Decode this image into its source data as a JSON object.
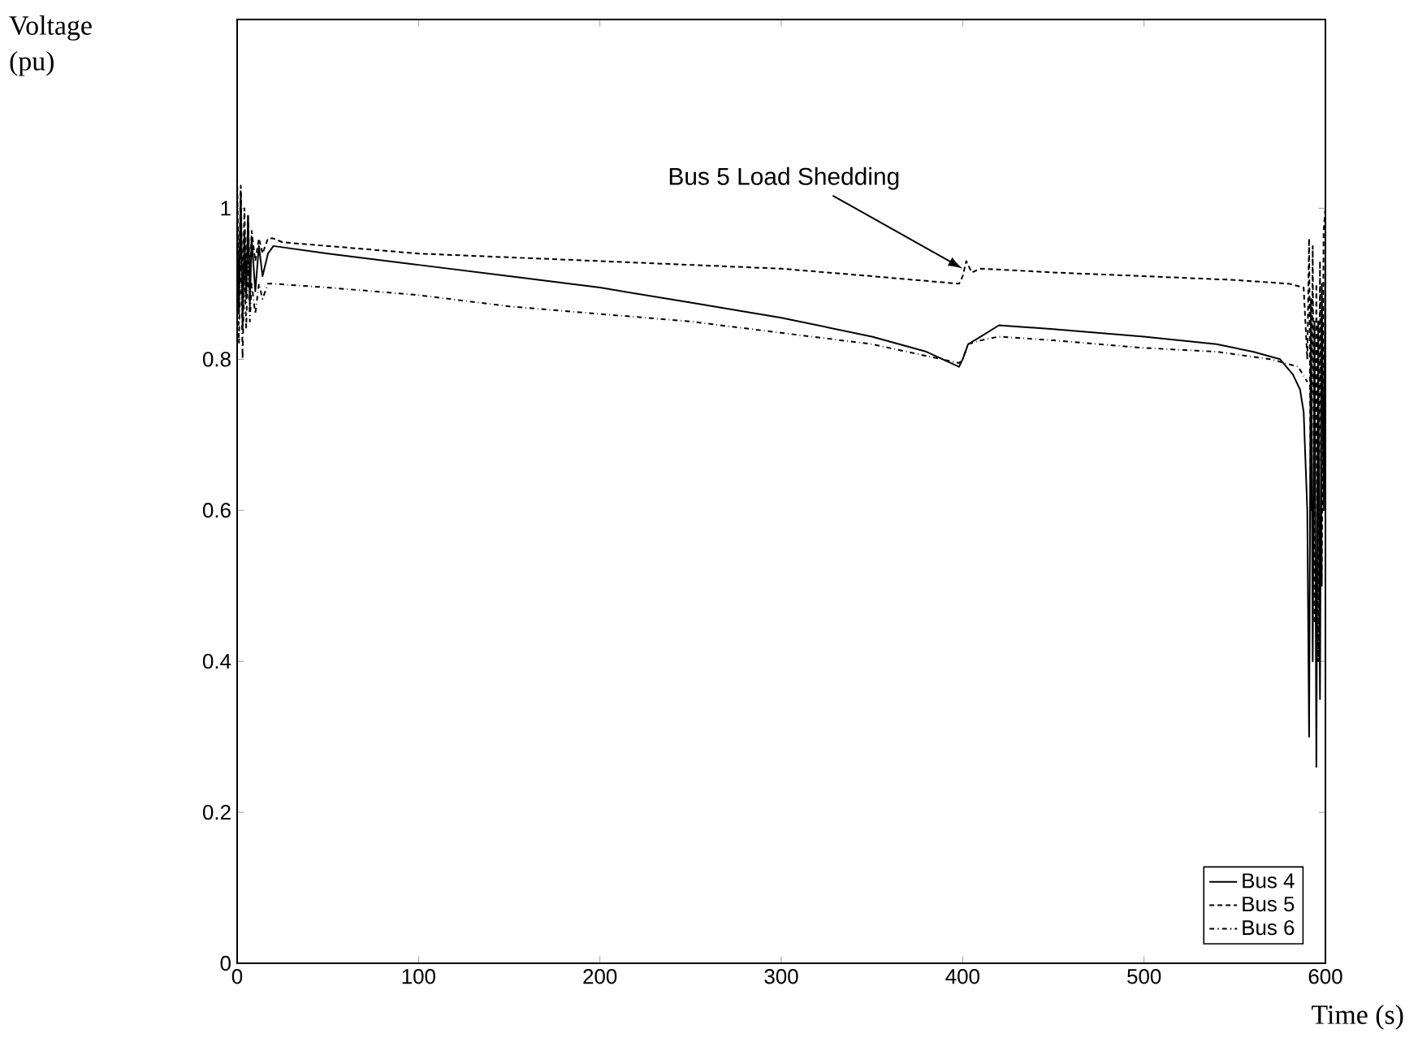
{
  "chart_data": {
    "type": "line",
    "xlabel": "Time (s)",
    "ylabel": "Voltage (pu)",
    "xlim": [
      0,
      600
    ],
    "ylim": [
      0,
      1.25
    ],
    "xticks": [
      0,
      100,
      200,
      300,
      400,
      500,
      600
    ],
    "yticks": [
      0,
      0.2,
      0.4,
      0.6,
      0.8,
      1
    ],
    "legend": "bottom right",
    "grid": false,
    "annotations": [
      {
        "text": "Bus 5 Load Shedding",
        "x": 400,
        "y": 0.92
      }
    ],
    "series": [
      {
        "name": "Bus 4",
        "color": "#000000",
        "line_style": "solid",
        "x": [
          0,
          1,
          2,
          3,
          4,
          5,
          6,
          7,
          8,
          10,
          12,
          14,
          17,
          20,
          50,
          100,
          150,
          200,
          250,
          300,
          350,
          380,
          398,
          400,
          403,
          410,
          420,
          450,
          500,
          540,
          560,
          575,
          582,
          586,
          588,
          590,
          591,
          592,
          593,
          594,
          595,
          596,
          597,
          598,
          599,
          600
        ],
        "values": [
          0.98,
          0.86,
          1.02,
          0.84,
          0.97,
          0.88,
          0.99,
          0.87,
          0.96,
          0.89,
          0.95,
          0.91,
          0.94,
          0.95,
          0.94,
          0.925,
          0.91,
          0.895,
          0.875,
          0.855,
          0.83,
          0.81,
          0.79,
          0.8,
          0.82,
          0.83,
          0.845,
          0.84,
          0.83,
          0.82,
          0.81,
          0.8,
          0.78,
          0.76,
          0.73,
          0.6,
          0.3,
          0.88,
          0.4,
          0.85,
          0.26,
          0.85,
          0.35,
          0.9,
          0.6,
          0.95
        ]
      },
      {
        "name": "Bus 5",
        "color": "#000000",
        "line_style": "dotted",
        "x": [
          0,
          1,
          2,
          3,
          4,
          5,
          6,
          7,
          8,
          10,
          12,
          14,
          17,
          20,
          25,
          50,
          100,
          150,
          200,
          250,
          300,
          350,
          398,
          400,
          402,
          405,
          410,
          450,
          500,
          550,
          580,
          588,
          590,
          591,
          592,
          593,
          594,
          595,
          596,
          597,
          598,
          599,
          600
        ],
        "values": [
          1.04,
          0.9,
          1.03,
          0.88,
          1.0,
          0.9,
          0.99,
          0.91,
          0.97,
          0.93,
          0.96,
          0.94,
          0.96,
          0.96,
          0.955,
          0.95,
          0.94,
          0.935,
          0.93,
          0.925,
          0.92,
          0.91,
          0.9,
          0.91,
          0.93,
          0.915,
          0.92,
          0.915,
          0.91,
          0.905,
          0.9,
          0.895,
          0.8,
          0.96,
          0.6,
          0.95,
          0.45,
          0.9,
          0.4,
          0.93,
          0.5,
          0.97,
          1.0
        ]
      },
      {
        "name": "Bus 6",
        "color": "#000000",
        "line_style": "dashdot",
        "x": [
          0,
          1,
          2,
          3,
          4,
          5,
          6,
          7,
          8,
          10,
          12,
          14,
          17,
          20,
          50,
          100,
          150,
          200,
          250,
          300,
          350,
          398,
          400,
          403,
          410,
          420,
          450,
          500,
          540,
          570,
          585,
          590
        ],
        "values": [
          0.93,
          0.82,
          0.96,
          0.8,
          0.92,
          0.84,
          0.93,
          0.85,
          0.9,
          0.86,
          0.9,
          0.88,
          0.9,
          0.9,
          0.895,
          0.885,
          0.87,
          0.86,
          0.85,
          0.835,
          0.82,
          0.795,
          0.8,
          0.82,
          0.825,
          0.83,
          0.825,
          0.815,
          0.81,
          0.8,
          0.79,
          0.77
        ]
      }
    ]
  }
}
